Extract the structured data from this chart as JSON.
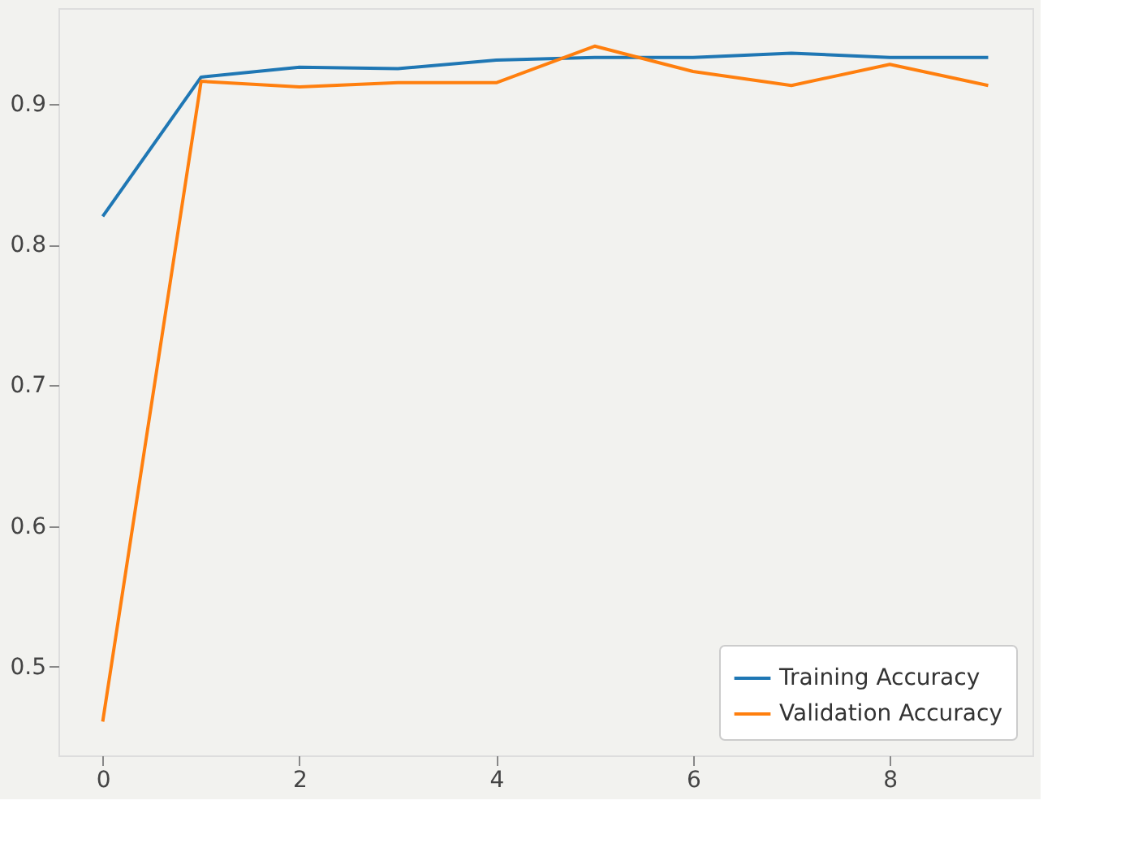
{
  "chart_data": {
    "type": "line",
    "x": [
      0,
      1,
      2,
      3,
      4,
      5,
      6,
      7,
      8,
      9
    ],
    "series": [
      {
        "name": "Training Accuracy",
        "color": "#1f77b4",
        "values": [
          0.82,
          0.919,
          0.926,
          0.925,
          0.931,
          0.933,
          0.933,
          0.936,
          0.933,
          0.933
        ]
      },
      {
        "name": "Validation Accuracy",
        "color": "#ff7f0e",
        "values": [
          0.461,
          0.916,
          0.912,
          0.915,
          0.915,
          0.941,
          0.923,
          0.913,
          0.928,
          0.913
        ]
      }
    ],
    "xlim": [
      -0.45,
      9.45
    ],
    "xticks": [
      0,
      2,
      4,
      6,
      8
    ],
    "ylim": [
      0.437,
      0.968
    ],
    "yticks": [
      0.5,
      0.6,
      0.7,
      0.8,
      0.9
    ],
    "legend": "bottom right",
    "grid": false,
    "marker": "none",
    "line_style": "solid"
  }
}
